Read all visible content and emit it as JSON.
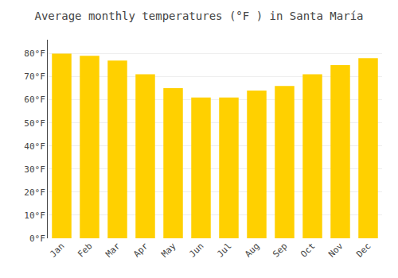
{
  "chart_data": {
    "type": "bar",
    "title": "Average monthly temperatures (°F ) in Santa María",
    "categories": [
      "Jan",
      "Feb",
      "Mar",
      "Apr",
      "May",
      "Jun",
      "Jul",
      "Aug",
      "Sep",
      "Oct",
      "Nov",
      "Dec"
    ],
    "values": [
      80,
      79,
      77,
      71,
      65,
      61,
      61,
      64,
      66,
      71,
      75,
      78
    ],
    "color": "#FFD000",
    "ylim": [
      0,
      86
    ],
    "yticks": [
      {
        "value": 0,
        "label": "0°F"
      },
      {
        "value": 10,
        "label": "10°F"
      },
      {
        "value": 20,
        "label": "20°F"
      },
      {
        "value": 30,
        "label": "30°F"
      },
      {
        "value": 40,
        "label": "40°F"
      },
      {
        "value": 50,
        "label": "50°F"
      },
      {
        "value": 60,
        "label": "60°F"
      },
      {
        "value": 70,
        "label": "70°F"
      },
      {
        "value": 80,
        "label": "80°F"
      }
    ],
    "grid": true
  }
}
